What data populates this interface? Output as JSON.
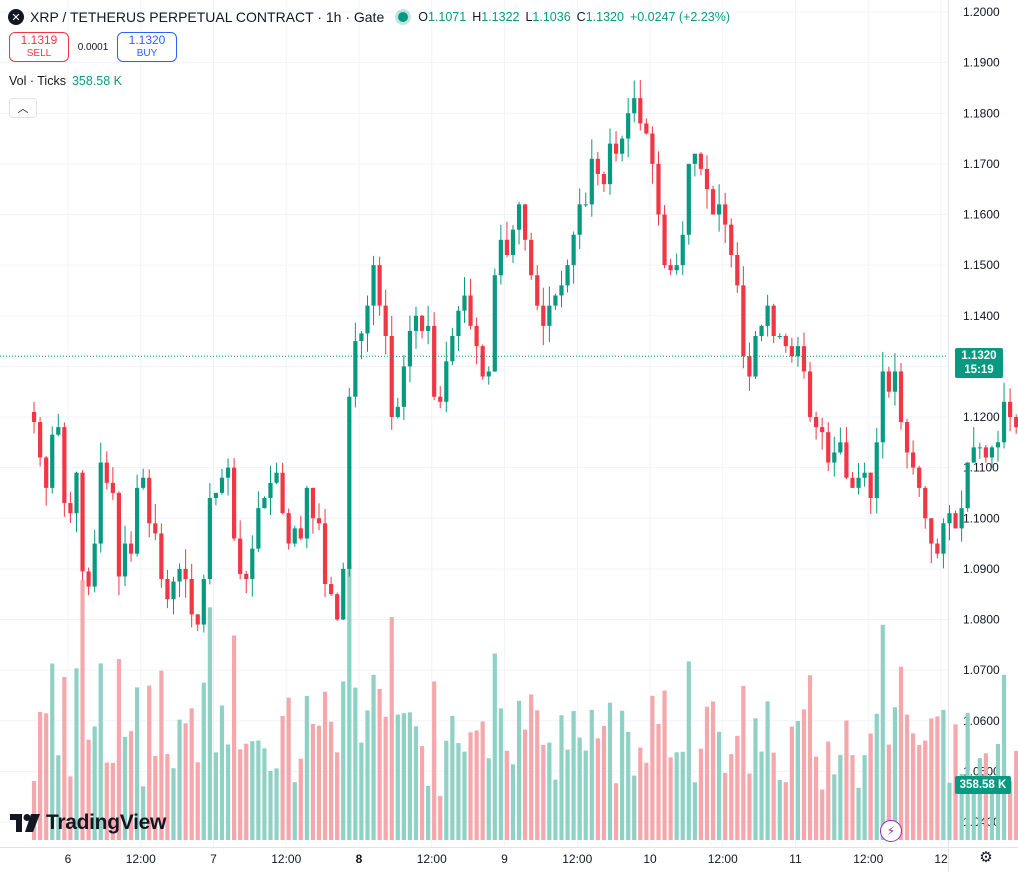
{
  "header": {
    "symbol_icon": "x-letter-icon",
    "symbol_title": "XRP / TETHERUS PERPETUAL CONTRACT · 1h · Gate",
    "ohlc": {
      "open_key": "O",
      "open": "1.1071",
      "high_key": "H",
      "high": "1.1322",
      "low_key": "L",
      "low": "1.1036",
      "close_key": "C",
      "close": "1.1320",
      "change": "+0.0247 (+2.23%)"
    }
  },
  "trade": {
    "sell_price": "1.1319",
    "sell_label": "SELL",
    "spread": "0.0001",
    "buy_price": "1.1320",
    "buy_label": "BUY"
  },
  "volume_indicator": {
    "label": "Vol · Ticks",
    "value": "358.58 K"
  },
  "price_axis": {
    "current_price": "1.1320",
    "countdown": "15:19",
    "current_volume": "358.58 K"
  },
  "logo_text": "TradingView",
  "colors": {
    "up": "#089981",
    "down": "#f23645",
    "up_volume": "#8fd1c5",
    "down_volume": "#f5a7ac",
    "grid": "#f0f3fa"
  },
  "chart_data": {
    "type": "candlestick",
    "interval": "1h",
    "ylim": [
      1.035,
      1.2015
    ],
    "y_ticks": [
      "1.2000",
      "1.1900",
      "1.1800",
      "1.1700",
      "1.1600",
      "1.1500",
      "1.1400",
      "1.1300",
      "1.1200",
      "1.1100",
      "1.1000",
      "1.0900",
      "1.0800",
      "1.0700",
      "1.0600",
      "1.0500",
      "1.0400"
    ],
    "x_ticks": [
      {
        "label": "6",
        "bold": false,
        "hour": 24
      },
      {
        "label": "12:00",
        "bold": false,
        "hour": 36
      },
      {
        "label": "7",
        "bold": false,
        "hour": 48
      },
      {
        "label": "12:00",
        "bold": false,
        "hour": 60
      },
      {
        "label": "8",
        "bold": true,
        "hour": 72
      },
      {
        "label": "12:00",
        "bold": false,
        "hour": 84
      },
      {
        "label": "9",
        "bold": false,
        "hour": 96
      },
      {
        "label": "12:00",
        "bold": false,
        "hour": 108
      },
      {
        "label": "10",
        "bold": false,
        "hour": 120
      },
      {
        "label": "12:00",
        "bold": false,
        "hour": 132
      },
      {
        "label": "11",
        "bold": false,
        "hour": 144
      },
      {
        "label": "12:00",
        "bold": false,
        "hour": 156
      },
      {
        "label": "12",
        "bold": false,
        "hour": 168
      }
    ],
    "first_candle_hour": 18.4,
    "close_path": [
      1.119,
      1.112,
      1.106,
      1.1165,
      1.118,
      1.103,
      1.101,
      1.109,
      1.0895,
      1.0865,
      1.095,
      1.111,
      1.107,
      1.105,
      1.0885,
      1.095,
      1.093,
      1.106,
      1.108,
      1.099,
      1.097,
      1.088,
      1.084,
      1.0875,
      1.09,
      1.088,
      1.081,
      1.079,
      1.088,
      1.104,
      1.105,
      1.108,
      1.11,
      1.096,
      1.089,
      1.088,
      1.094,
      1.102,
      1.104,
      1.107,
      1.109,
      1.101,
      1.095,
      1.098,
      1.096,
      1.106,
      1.1,
      1.099,
      1.087,
      1.085,
      1.08,
      1.09,
      1.124,
      1.135,
      1.1365,
      1.142,
      1.15,
      1.142,
      1.136,
      1.12,
      1.122,
      1.13,
      1.137,
      1.14,
      1.137,
      1.138,
      1.124,
      1.123,
      1.131,
      1.136,
      1.141,
      1.144,
      1.138,
      1.134,
      1.128,
      1.129,
      1.148,
      1.155,
      1.152,
      1.157,
      1.162,
      1.155,
      1.148,
      1.142,
      1.138,
      1.142,
      1.144,
      1.146,
      1.15,
      1.156,
      1.162,
      1.162,
      1.171,
      1.168,
      1.166,
      1.174,
      1.172,
      1.175,
      1.18,
      1.183,
      1.178,
      1.176,
      1.17,
      1.16,
      1.15,
      1.149,
      1.15,
      1.156,
      1.17,
      1.172,
      1.169,
      1.165,
      1.16,
      1.162,
      1.158,
      1.152,
      1.146,
      1.132,
      1.128,
      1.136,
      1.138,
      1.142,
      1.136,
      1.136,
      1.134,
      1.132,
      1.134,
      1.129,
      1.12,
      1.118,
      1.117,
      1.111,
      1.113,
      1.115,
      1.108,
      1.106,
      1.108,
      1.109,
      1.104,
      1.115,
      1.129,
      1.125,
      1.129,
      1.119,
      1.113,
      1.11,
      1.106,
      1.1,
      1.095,
      1.093,
      1.099,
      1.101,
      1.098,
      1.102,
      1.111,
      1.114,
      1.114,
      1.112,
      1.114,
      1.115,
      1.123,
      1.12,
      1.118,
      1.115,
      1.113,
      1.111,
      1.108,
      1.132
    ],
    "volume": {
      "ylim": [
        0,
        650
      ],
      "series_note": "volume in K ticks",
      "last": 358.58
    }
  }
}
